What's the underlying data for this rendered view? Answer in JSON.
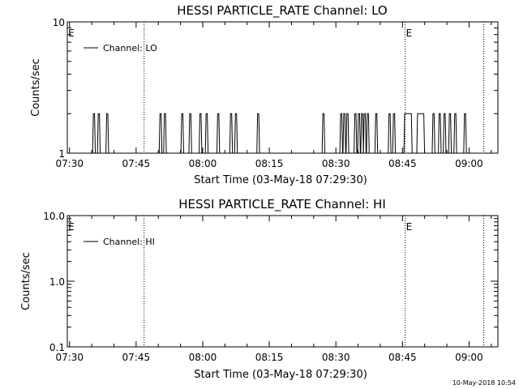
{
  "chart_data": [
    {
      "type": "line",
      "title": "HESSI PARTICLE_RATE Channel: LO",
      "xlabel": "Start Time (03-May-18 07:29:30)",
      "ylabel": "Counts/sec",
      "x_tick_labels": [
        "07:30",
        "07:45",
        "08:00",
        "08:15",
        "08:30",
        "08:45",
        "09:00"
      ],
      "x_ticks_minutes": [
        450,
        465,
        480,
        495,
        510,
        525,
        540
      ],
      "xlim_minutes": [
        449.5,
        546.5
      ],
      "y_scale": "log",
      "ylim": [
        1,
        10
      ],
      "y_tick_labels": [
        "1",
        "10"
      ],
      "y_ticks": [
        1,
        10
      ],
      "legend": "Channel: LO",
      "legend_position": "top-left",
      "marker_E": "E",
      "vertical_dotted_lines_minutes": [
        466.8,
        525.6,
        543.3
      ],
      "e_marker_minutes": [
        449.7,
        525.8
      ],
      "series": [
        {
          "name": "Channel: LO",
          "spikes_minutes": [
            455.5,
            456.6,
            458.5,
            470.5,
            471.5,
            475.4,
            477.2,
            479.5,
            480.9,
            483.5,
            486.4,
            487.5,
            492.5,
            507.2,
            511.2,
            511.9,
            512.6,
            514.4,
            515.2,
            515.9,
            516.5,
            517.2,
            519.1,
            522.1,
            523.1,
            532.0,
            533.4,
            534.5,
            535.7,
            536.9,
            539.1
          ],
          "plateaus_minutes": [
            [
              525.5,
              527.0
            ],
            [
              528.4,
              529.8
            ]
          ],
          "baseline": 1,
          "peak": 2
        }
      ]
    },
    {
      "type": "line",
      "title": "HESSI PARTICLE_RATE Channel: HI",
      "xlabel": "Start Time (03-May-18 07:29:30)",
      "ylabel": "Counts/sec",
      "x_tick_labels": [
        "07:30",
        "07:45",
        "08:00",
        "08:15",
        "08:30",
        "08:45",
        "09:00"
      ],
      "x_ticks_minutes": [
        450,
        465,
        480,
        495,
        510,
        525,
        540
      ],
      "xlim_minutes": [
        449.5,
        546.5
      ],
      "y_scale": "log",
      "ylim": [
        0.1,
        10
      ],
      "y_tick_labels": [
        "0.1",
        "1.0",
        "10.0"
      ],
      "y_ticks": [
        0.1,
        1,
        10
      ],
      "legend": "Channel: HI",
      "legend_position": "top-left",
      "marker_E": "E",
      "vertical_dotted_lines_minutes": [
        466.8,
        525.6,
        543.3
      ],
      "e_marker_minutes": [
        449.7,
        525.8
      ],
      "series": [
        {
          "name": "Channel: HI",
          "spikes_minutes": [],
          "plateaus_minutes": []
        }
      ]
    }
  ],
  "footer": {
    "timestamp": "10-May-2018 10:54"
  }
}
